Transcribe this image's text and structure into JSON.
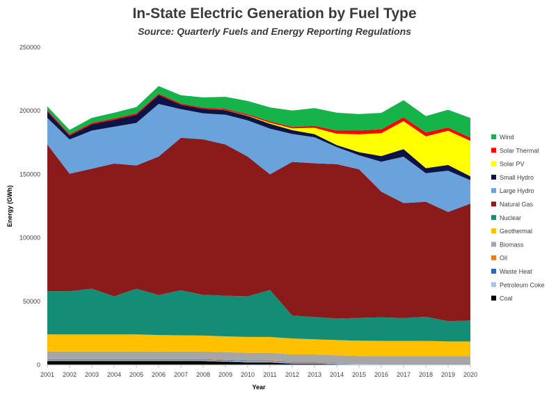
{
  "chart_data": {
    "type": "area",
    "title": "In-State Electric Generation by Fuel Type",
    "subtitle": "Source: Quarterly Fuels and Energy Reporting Regulations",
    "xlabel": "Year",
    "ylabel": "Energy (GWh)",
    "ylim": [
      0,
      250000
    ],
    "y_ticks": [
      0,
      50000,
      100000,
      150000,
      200000,
      250000
    ],
    "y_tick_labels": [
      "0",
      "50000",
      "100000",
      "150000",
      "200000",
      "250000"
    ],
    "grid": false,
    "legend_position": "right",
    "stacked": true,
    "x": [
      "2001",
      "2002",
      "2003",
      "2004",
      "2005",
      "2006",
      "2007",
      "2008",
      "2009",
      "2010",
      "2011",
      "2012",
      "2013",
      "2014",
      "2015",
      "2016",
      "2017",
      "2018",
      "2019",
      "2020"
    ],
    "series": [
      {
        "name": "Coal",
        "color": "#000000",
        "values": [
          3000,
          3000,
          3000,
          3000,
          3000,
          3000,
          3000,
          3000,
          2500,
          2000,
          2000,
          1000,
          1000,
          500,
          300,
          300,
          300,
          300,
          300,
          300
        ]
      },
      {
        "name": "Petroleum Coke",
        "color": "#a9c4e6",
        "values": [
          700,
          700,
          700,
          700,
          700,
          700,
          700,
          700,
          700,
          700,
          700,
          600,
          600,
          500,
          400,
          300,
          300,
          300,
          300,
          300
        ]
      },
      {
        "name": "Waste Heat",
        "color": "#2f6aa8",
        "values": [
          500,
          500,
          500,
          500,
          500,
          500,
          500,
          500,
          500,
          500,
          500,
          400,
          400,
          300,
          200,
          200,
          200,
          200,
          200,
          200
        ]
      },
      {
        "name": "Oil",
        "color": "#f07b16",
        "values": [
          300,
          300,
          300,
          300,
          300,
          300,
          300,
          300,
          300,
          300,
          300,
          200,
          200,
          200,
          100,
          100,
          100,
          100,
          100,
          100
        ]
      },
      {
        "name": "Biomass",
        "color": "#a6a6a6",
        "values": [
          6000,
          6000,
          6000,
          6000,
          6000,
          6000,
          6000,
          6000,
          6000,
          6000,
          6000,
          6000,
          6000,
          6000,
          6000,
          6000,
          6000,
          6000,
          6000,
          6000
        ]
      },
      {
        "name": "Geothermal",
        "color": "#ffc000",
        "values": [
          13500,
          13500,
          13500,
          13500,
          13500,
          13000,
          12800,
          12600,
          12500,
          12500,
          12500,
          12600,
          12000,
          12000,
          12000,
          12000,
          12000,
          12000,
          11500,
          11500
        ]
      },
      {
        "name": "Nuclear",
        "color": "#138d75",
        "values": [
          34000,
          34000,
          36000,
          30000,
          36000,
          31500,
          35500,
          32000,
          32000,
          32000,
          37000,
          18000,
          17500,
          17000,
          18000,
          18500,
          18000,
          19000,
          16000,
          16500
        ]
      },
      {
        "name": "Natural Gas",
        "color": "#8b1a1a",
        "values": [
          115500,
          92500,
          94500,
          104500,
          97000,
          109000,
          120000,
          122500,
          119000,
          110000,
          91000,
          121000,
          121000,
          121500,
          117000,
          99000,
          90500,
          90500,
          86000,
          92000
        ]
      },
      {
        "name": "Large Hydro",
        "color": "#6aa2dc",
        "values": [
          21000,
          27000,
          30000,
          29000,
          33500,
          41500,
          22500,
          20500,
          23500,
          28500,
          36000,
          22000,
          20500,
          13500,
          11000,
          23500,
          36500,
          22500,
          32500,
          18500
        ]
      },
      {
        "name": "Small Hydro",
        "color": "#0d1445",
        "values": [
          5000,
          3000,
          5000,
          5500,
          6500,
          7000,
          3500,
          3500,
          3500,
          3500,
          3800,
          3000,
          2500,
          1500,
          2500,
          4500,
          6000,
          4000,
          4500,
          3000
        ]
      },
      {
        "name": "Solar PV",
        "color": "#ffff00",
        "values": [
          0,
          0,
          0,
          0,
          0,
          0,
          0,
          0,
          100,
          300,
          900,
          1500,
          5000,
          9000,
          14000,
          18000,
          22000,
          25000,
          27000,
          28000
        ]
      },
      {
        "name": "Solar Thermal",
        "color": "#ff0000",
        "values": [
          1000,
          1000,
          1000,
          1000,
          1000,
          1000,
          1000,
          1000,
          1000,
          1000,
          1000,
          1000,
          1500,
          2500,
          3000,
          3000,
          3000,
          3000,
          2500,
          2500
        ]
      },
      {
        "name": "Wind",
        "color": "#15b34a",
        "values": [
          3000,
          3500,
          4000,
          4500,
          5000,
          6000,
          6500,
          8000,
          9500,
          10500,
          11000,
          13000,
          14000,
          14000,
          13000,
          13000,
          13500,
          13000,
          14000,
          15500
        ]
      }
    ]
  }
}
